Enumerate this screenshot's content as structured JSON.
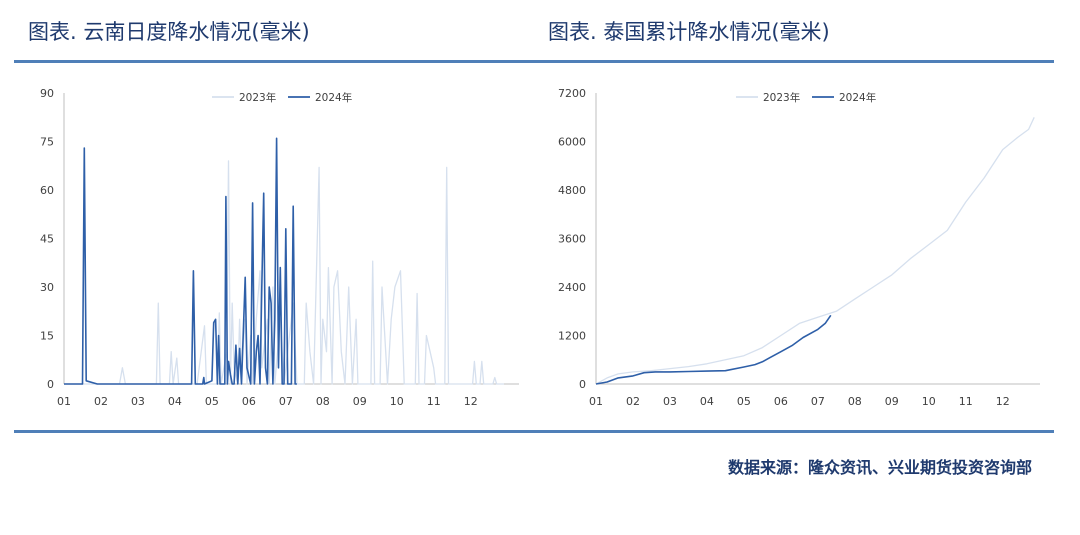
{
  "titles": {
    "left": "图表.  云南日度降水情况(毫米)",
    "right": "图表.  泰国累计降水情况(毫米)"
  },
  "source": "数据来源：隆众资讯、兴业期货投资咨询部",
  "colors": {
    "series_2023": "#d6e0ee",
    "series_2024": "#2e5fa8",
    "rule": "#4f7fb8",
    "title": "#1f3a6e"
  },
  "chart_data": [
    {
      "type": "line",
      "title": "",
      "xlabel": "",
      "ylabel": "",
      "xticks": [
        "01",
        "02",
        "03",
        "04",
        "05",
        "06",
        "07",
        "08",
        "09",
        "10",
        "11",
        "12"
      ],
      "xlim": [
        1,
        12.9
      ],
      "ylim": [
        0,
        90
      ],
      "yticks": [
        0,
        15,
        30,
        45,
        60,
        75,
        90
      ],
      "legend": "top-center",
      "grid": false,
      "series": [
        {
          "name": "2023年",
          "color": "#d6e0ee",
          "points": [
            [
              1,
              0
            ],
            [
              2.5,
              0
            ],
            [
              2.58,
              5
            ],
            [
              2.66,
              0
            ],
            [
              3.5,
              0
            ],
            [
              3.55,
              25
            ],
            [
              3.6,
              0
            ],
            [
              3.85,
              0
            ],
            [
              3.9,
              10
            ],
            [
              3.95,
              0
            ],
            [
              4.05,
              8
            ],
            [
              4.1,
              0
            ],
            [
              4.6,
              0
            ],
            [
              4.8,
              18
            ],
            [
              4.85,
              0
            ],
            [
              5.15,
              0
            ],
            [
              5.2,
              22
            ],
            [
              5.25,
              0
            ],
            [
              5.4,
              10
            ],
            [
              5.45,
              69
            ],
            [
              5.5,
              0
            ],
            [
              5.55,
              25
            ],
            [
              5.6,
              5
            ],
            [
              5.7,
              0
            ],
            [
              5.75,
              20
            ],
            [
              5.8,
              5
            ],
            [
              5.9,
              20
            ],
            [
              5.95,
              0
            ],
            [
              6.05,
              15
            ],
            [
              6.1,
              0
            ],
            [
              6.2,
              20
            ],
            [
              6.3,
              35
            ],
            [
              6.35,
              5
            ],
            [
              6.5,
              20
            ],
            [
              6.55,
              0
            ],
            [
              6.65,
              30
            ],
            [
              6.7,
              0
            ],
            [
              6.85,
              20
            ],
            [
              6.95,
              0
            ],
            [
              7.2,
              25
            ],
            [
              7.3,
              0
            ],
            [
              7.5,
              0
            ],
            [
              7.55,
              25
            ],
            [
              7.65,
              10
            ],
            [
              7.75,
              0
            ],
            [
              7.9,
              67
            ],
            [
              7.95,
              0
            ],
            [
              8.0,
              20
            ],
            [
              8.1,
              10
            ],
            [
              8.15,
              36
            ],
            [
              8.25,
              0
            ],
            [
              8.3,
              30
            ],
            [
              8.4,
              35
            ],
            [
              8.5,
              10
            ],
            [
              8.6,
              0
            ],
            [
              8.7,
              30
            ],
            [
              8.8,
              0
            ],
            [
              8.9,
              20
            ],
            [
              8.95,
              0
            ],
            [
              9.3,
              0
            ],
            [
              9.35,
              38
            ],
            [
              9.4,
              0
            ],
            [
              9.55,
              0
            ],
            [
              9.6,
              30
            ],
            [
              9.7,
              10
            ],
            [
              9.75,
              0
            ],
            [
              9.85,
              20
            ],
            [
              9.95,
              30
            ],
            [
              10.1,
              35
            ],
            [
              10.2,
              0
            ],
            [
              10.5,
              0
            ],
            [
              10.55,
              28
            ],
            [
              10.6,
              0
            ],
            [
              10.75,
              0
            ],
            [
              10.8,
              15
            ],
            [
              10.9,
              10
            ],
            [
              11.0,
              5
            ],
            [
              11.05,
              0
            ],
            [
              11.3,
              0
            ],
            [
              11.35,
              67
            ],
            [
              11.4,
              0
            ],
            [
              12.05,
              0
            ],
            [
              12.1,
              7
            ],
            [
              12.15,
              0
            ],
            [
              12.25,
              0
            ],
            [
              12.3,
              7
            ],
            [
              12.35,
              0
            ],
            [
              12.6,
              0
            ],
            [
              12.65,
              2
            ],
            [
              12.7,
              0
            ],
            [
              12.9,
              0
            ]
          ]
        },
        {
          "name": "2024年",
          "color": "#2e5fa8",
          "points": [
            [
              1,
              0
            ],
            [
              1.5,
              0
            ],
            [
              1.55,
              73
            ],
            [
              1.6,
              1
            ],
            [
              1.9,
              0
            ],
            [
              4.45,
              0
            ],
            [
              4.5,
              35
            ],
            [
              4.55,
              0
            ],
            [
              4.6,
              0
            ],
            [
              4.75,
              0
            ],
            [
              4.78,
              2
            ],
            [
              4.8,
              0
            ],
            [
              5.0,
              1
            ],
            [
              5.05,
              19
            ],
            [
              5.1,
              20
            ],
            [
              5.15,
              0
            ],
            [
              5.18,
              15
            ],
            [
              5.22,
              0
            ],
            [
              5.35,
              0
            ],
            [
              5.38,
              58
            ],
            [
              5.42,
              0
            ],
            [
              5.45,
              7
            ],
            [
              5.5,
              3
            ],
            [
              5.55,
              0
            ],
            [
              5.6,
              0
            ],
            [
              5.65,
              12
            ],
            [
              5.7,
              0
            ],
            [
              5.75,
              11
            ],
            [
              5.8,
              0
            ],
            [
              5.9,
              33
            ],
            [
              5.95,
              5
            ],
            [
              6.05,
              0
            ],
            [
              6.1,
              56
            ],
            [
              6.15,
              0
            ],
            [
              6.2,
              10
            ],
            [
              6.25,
              15
            ],
            [
              6.3,
              0
            ],
            [
              6.35,
              30
            ],
            [
              6.4,
              59
            ],
            [
              6.45,
              5
            ],
            [
              6.5,
              0
            ],
            [
              6.55,
              30
            ],
            [
              6.6,
              25
            ],
            [
              6.65,
              0
            ],
            [
              6.7,
              20
            ],
            [
              6.75,
              76
            ],
            [
              6.8,
              5
            ],
            [
              6.85,
              36
            ],
            [
              6.9,
              0
            ],
            [
              6.95,
              0
            ],
            [
              7.0,
              48
            ],
            [
              7.05,
              0
            ],
            [
              7.15,
              0
            ],
            [
              7.2,
              55
            ],
            [
              7.25,
              0
            ],
            [
              7.3,
              0
            ]
          ]
        }
      ]
    },
    {
      "type": "line",
      "title": "",
      "xlabel": "",
      "ylabel": "",
      "xticks": [
        "01",
        "02",
        "03",
        "04",
        "05",
        "06",
        "07",
        "08",
        "09",
        "10",
        "11",
        "12"
      ],
      "xlim": [
        1,
        12.9
      ],
      "ylim": [
        0,
        7200
      ],
      "yticks": [
        0,
        1200,
        2400,
        3600,
        4800,
        6000,
        7200
      ],
      "legend": "top-center",
      "grid": false,
      "series": [
        {
          "name": "2023年",
          "color": "#d6e0ee",
          "points": [
            [
              1,
              0
            ],
            [
              1.3,
              150
            ],
            [
              1.6,
              250
            ],
            [
              2,
              300
            ],
            [
              2.5,
              330
            ],
            [
              3,
              380
            ],
            [
              3.5,
              430
            ],
            [
              4,
              500
            ],
            [
              4.5,
              600
            ],
            [
              5,
              700
            ],
            [
              5.5,
              900
            ],
            [
              6,
              1200
            ],
            [
              6.5,
              1500
            ],
            [
              7,
              1650
            ],
            [
              7.5,
              1800
            ],
            [
              8,
              2100
            ],
            [
              8.5,
              2400
            ],
            [
              9,
              2700
            ],
            [
              9.5,
              3100
            ],
            [
              10,
              3450
            ],
            [
              10.5,
              3800
            ],
            [
              11,
              4500
            ],
            [
              11.5,
              5100
            ],
            [
              12,
              5800
            ],
            [
              12.4,
              6100
            ],
            [
              12.7,
              6300
            ],
            [
              12.85,
              6600
            ]
          ]
        },
        {
          "name": "2024年",
          "color": "#2e5fa8",
          "points": [
            [
              1,
              0
            ],
            [
              1.3,
              50
            ],
            [
              1.6,
              150
            ],
            [
              2,
              200
            ],
            [
              2.3,
              280
            ],
            [
              2.6,
              300
            ],
            [
              3,
              300
            ],
            [
              3.5,
              310
            ],
            [
              4,
              320
            ],
            [
              4.5,
              330
            ],
            [
              5,
              420
            ],
            [
              5.3,
              480
            ],
            [
              5.5,
              550
            ],
            [
              5.7,
              650
            ],
            [
              6,
              800
            ],
            [
              6.3,
              950
            ],
            [
              6.6,
              1150
            ],
            [
              7,
              1350
            ],
            [
              7.2,
              1500
            ],
            [
              7.35,
              1700
            ]
          ]
        }
      ]
    }
  ]
}
